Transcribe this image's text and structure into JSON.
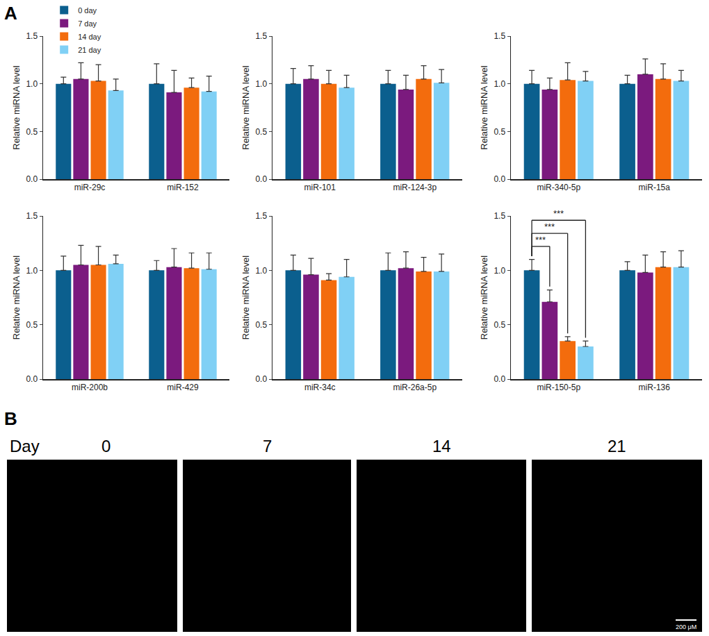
{
  "panel_labels": [
    "A",
    "B"
  ],
  "chart_data": [
    {
      "type": "bar",
      "ylabel": "Relative miRNA level",
      "categories": [
        "miR-29c",
        "miR-152"
      ],
      "legend": "upper left",
      "grid": false,
      "ylim": [
        0,
        1.5
      ],
      "yticks": [
        {
          "value": 0,
          "label": "0.0"
        },
        {
          "value": 0.5,
          "label": "0.5"
        },
        {
          "value": 1,
          "label": "1.0"
        },
        {
          "value": 1.5,
          "label": "1.5"
        }
      ],
      "series": [
        {
          "name": "0 day",
          "color": "#0b5f8e",
          "values": [
            1.0,
            1.0
          ],
          "error": [
            0.07,
            0.21
          ]
        },
        {
          "name": "7 day",
          "color": "#7b1a7e",
          "values": [
            1.05,
            0.91
          ],
          "error": [
            0.17,
            0.23
          ]
        },
        {
          "name": "14 day",
          "color": "#f36c0d",
          "values": [
            1.03,
            0.96
          ],
          "error": [
            0.17,
            0.1
          ]
        },
        {
          "name": "21 day",
          "color": "#80d0f5",
          "values": [
            0.93,
            0.92
          ],
          "error": [
            0.12,
            0.16
          ]
        }
      ]
    },
    {
      "type": "bar",
      "ylabel": "Relative miRNA level",
      "categories": [
        "miR-101",
        "miR-124-3p"
      ],
      "grid": false,
      "ylim": [
        0,
        1.5
      ],
      "yticks": [
        {
          "value": 0,
          "label": "0.0"
        },
        {
          "value": 0.5,
          "label": "0.5"
        },
        {
          "value": 1,
          "label": "1.0"
        },
        {
          "value": 1.5,
          "label": "1.5"
        }
      ],
      "series": [
        {
          "name": "0 day",
          "color": "#0b5f8e",
          "values": [
            1.0,
            1.0
          ],
          "error": [
            0.16,
            0.14
          ]
        },
        {
          "name": "7 day",
          "color": "#7b1a7e",
          "values": [
            1.05,
            0.94
          ],
          "error": [
            0.14,
            0.15
          ]
        },
        {
          "name": "14 day",
          "color": "#f36c0d",
          "values": [
            1.0,
            1.05
          ],
          "error": [
            0.14,
            0.14
          ]
        },
        {
          "name": "21 day",
          "color": "#80d0f5",
          "values": [
            0.96,
            1.01
          ],
          "error": [
            0.13,
            0.14
          ]
        }
      ]
    },
    {
      "type": "bar",
      "ylabel": "Relative miRNA level",
      "categories": [
        "miR-340-5p",
        "miR-15a"
      ],
      "grid": false,
      "ylim": [
        0,
        1.5
      ],
      "yticks": [
        {
          "value": 0,
          "label": "0.0"
        },
        {
          "value": 0.5,
          "label": "0.5"
        },
        {
          "value": 1,
          "label": "1.0"
        },
        {
          "value": 1.5,
          "label": "1.5"
        }
      ],
      "series": [
        {
          "name": "0 day",
          "color": "#0b5f8e",
          "values": [
            1.0,
            1.0
          ],
          "error": [
            0.14,
            0.09
          ]
        },
        {
          "name": "7 day",
          "color": "#7b1a7e",
          "values": [
            0.94,
            1.1
          ],
          "error": [
            0.12,
            0.16
          ]
        },
        {
          "name": "14 day",
          "color": "#f36c0d",
          "values": [
            1.04,
            1.05
          ],
          "error": [
            0.18,
            0.16
          ]
        },
        {
          "name": "21 day",
          "color": "#80d0f5",
          "values": [
            1.03,
            1.03
          ],
          "error": [
            0.1,
            0.11
          ]
        }
      ]
    },
    {
      "type": "bar",
      "ylabel": "Relative miRNA level",
      "categories": [
        "miR-200b",
        "miR-429"
      ],
      "grid": false,
      "ylim": [
        0,
        1.5
      ],
      "yticks": [
        {
          "value": 0,
          "label": "0.0"
        },
        {
          "value": 0.5,
          "label": "0.5"
        },
        {
          "value": 1,
          "label": "1.0"
        },
        {
          "value": 1.5,
          "label": "1.5"
        }
      ],
      "series": [
        {
          "name": "0 day",
          "color": "#0b5f8e",
          "values": [
            1.0,
            1.0
          ],
          "error": [
            0.13,
            0.09
          ]
        },
        {
          "name": "7 day",
          "color": "#7b1a7e",
          "values": [
            1.05,
            1.03
          ],
          "error": [
            0.18,
            0.17
          ]
        },
        {
          "name": "14 day",
          "color": "#f36c0d",
          "values": [
            1.05,
            1.02
          ],
          "error": [
            0.17,
            0.14
          ]
        },
        {
          "name": "21 day",
          "color": "#80d0f5",
          "values": [
            1.06,
            1.01
          ],
          "error": [
            0.08,
            0.15
          ]
        }
      ]
    },
    {
      "type": "bar",
      "ylabel": "Relative miRNA level",
      "categories": [
        "miR-34c",
        "miR-26a-5p"
      ],
      "grid": false,
      "ylim": [
        0,
        1.5
      ],
      "yticks": [
        {
          "value": 0,
          "label": "0.0"
        },
        {
          "value": 0.5,
          "label": "0.5"
        },
        {
          "value": 1,
          "label": "1.0"
        },
        {
          "value": 1.5,
          "label": "1.5"
        }
      ],
      "series": [
        {
          "name": "0 day",
          "color": "#0b5f8e",
          "values": [
            1.0,
            1.0
          ],
          "error": [
            0.14,
            0.16
          ]
        },
        {
          "name": "7 day",
          "color": "#7b1a7e",
          "values": [
            0.96,
            1.02
          ],
          "error": [
            0.15,
            0.15
          ]
        },
        {
          "name": "14 day",
          "color": "#f36c0d",
          "values": [
            0.91,
            0.99
          ],
          "error": [
            0.06,
            0.13
          ]
        },
        {
          "name": "21 day",
          "color": "#80d0f5",
          "values": [
            0.94,
            0.99
          ],
          "error": [
            0.16,
            0.16
          ]
        }
      ]
    },
    {
      "type": "bar",
      "ylabel": "Relative miRNA level",
      "categories": [
        "miR-150-5p",
        "miR-136"
      ],
      "grid": false,
      "ylim": [
        0,
        1.5
      ],
      "yticks": [
        {
          "value": 0,
          "label": "0.0"
        },
        {
          "value": 0.5,
          "label": "0.5"
        },
        {
          "value": 1,
          "label": "1.0"
        },
        {
          "value": 1.5,
          "label": "1.5"
        }
      ],
      "series": [
        {
          "name": "0 day",
          "color": "#0b5f8e",
          "values": [
            1.0,
            1.0
          ],
          "error": [
            0.1,
            0.08
          ]
        },
        {
          "name": "7 day",
          "color": "#7b1a7e",
          "values": [
            0.71,
            0.98
          ],
          "error": [
            0.11,
            0.16
          ]
        },
        {
          "name": "14 day",
          "color": "#f36c0d",
          "values": [
            0.35,
            1.03
          ],
          "error": [
            0.04,
            0.14
          ]
        },
        {
          "name": "21 day",
          "color": "#80d0f5",
          "values": [
            0.3,
            1.03
          ],
          "error": [
            0.05,
            0.15
          ]
        }
      ],
      "annotations": [
        {
          "category": "miR-150-5p",
          "from": "0 day",
          "to": "7 day",
          "label": "***"
        },
        {
          "category": "miR-150-5p",
          "from": "0 day",
          "to": "14 day",
          "label": "***"
        },
        {
          "category": "miR-150-5p",
          "from": "0 day",
          "to": "21 day",
          "label": "***"
        }
      ]
    }
  ],
  "image_panel": {
    "row_label": "Day",
    "days": [
      "0",
      "7",
      "14",
      "21"
    ],
    "scale_bar": "200 μM"
  }
}
